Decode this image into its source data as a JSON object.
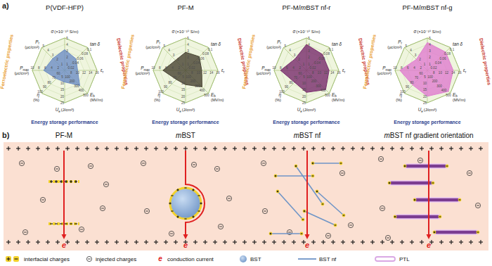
{
  "figure": {
    "label_a": "a)"
  },
  "chart_data": [
    {
      "type": "radar",
      "title": "P(VDF-HFP)",
      "color": "#6f8fc4",
      "axes": [
        {
          "label": "σ",
          "unit": "(×10⁻¹⁰ S/m)",
          "lim": [
            0,
            5
          ],
          "ticks": [
            1,
            2,
            3,
            4,
            5
          ]
        },
        {
          "label": "tan δ",
          "lim": [
            0,
            0.1
          ],
          "ticks": [
            0.02,
            0.04,
            0.06,
            0.08,
            0.1
          ]
        },
        {
          "label": "ε",
          "sub": "r",
          "lim": [
            6,
            16
          ],
          "ticks": [
            8,
            10,
            12,
            14,
            16
          ]
        },
        {
          "label": "E",
          "sub": "b",
          "unit": "(MV/m)",
          "lim": [
            0,
            500
          ],
          "ticks": [
            100,
            200,
            300,
            400,
            500
          ]
        },
        {
          "label": "U",
          "sub": "e",
          "unit": "(J/cm³)",
          "lim": [
            0,
            25
          ],
          "ticks": [
            5,
            10,
            15,
            20,
            25
          ]
        },
        {
          "label": "η",
          "unit": "(%)",
          "lim": [
            50,
            100
          ],
          "ticks": [
            60,
            70,
            80,
            90,
            100
          ]
        },
        {
          "label": "P",
          "sub": "max",
          "unit": "(μc/cm²)",
          "lim": [
            0,
            10
          ],
          "ticks": [
            2,
            4,
            6,
            8,
            10
          ]
        },
        {
          "label": "P",
          "sub": "r",
          "unit": "(μc/cm²)",
          "lim": [
            0,
            5
          ],
          "ticks": [
            1,
            2,
            3,
            4,
            5
          ]
        }
      ],
      "values": [
        3.2,
        0.05,
        10,
        330,
        9,
        68,
        6.5,
        2.6
      ],
      "groups": [
        {
          "label": "Ferroelectric properties",
          "color": "#e9a23b"
        },
        {
          "label": "Dielectric properties",
          "color": "#c8372d"
        },
        {
          "label": "Energy storage performance",
          "color": "#2e3f8f"
        }
      ]
    },
    {
      "type": "radar",
      "title": "PF-M",
      "color": "#4a4535",
      "axes": [
        {
          "label": "σ",
          "unit": "(×10⁻¹⁰ S/m)",
          "lim": [
            0,
            5
          ],
          "ticks": [
            1,
            2,
            3,
            4,
            5
          ]
        },
        {
          "label": "tan δ",
          "lim": [
            0,
            0.1
          ],
          "ticks": [
            0.02,
            0.04,
            0.06,
            0.08,
            0.1
          ]
        },
        {
          "label": "ε",
          "sub": "r",
          "lim": [
            6,
            16
          ],
          "ticks": [
            8,
            10,
            12,
            14,
            16
          ]
        },
        {
          "label": "E",
          "sub": "b",
          "unit": "(MV/m)",
          "lim": [
            0,
            500
          ],
          "ticks": [
            100,
            200,
            300,
            400,
            500
          ]
        },
        {
          "label": "U",
          "sub": "e",
          "unit": "(J/cm³)",
          "lim": [
            0,
            25
          ],
          "ticks": [
            5,
            10,
            15,
            20,
            25
          ]
        },
        {
          "label": "η",
          "unit": "(%)",
          "lim": [
            50,
            100
          ],
          "ticks": [
            60,
            70,
            80,
            90,
            100
          ]
        },
        {
          "label": "P",
          "sub": "max",
          "unit": "(μc/cm²)",
          "lim": [
            0,
            10
          ],
          "ticks": [
            2,
            4,
            6,
            8,
            10
          ]
        },
        {
          "label": "P",
          "sub": "r",
          "unit": "(μc/cm²)",
          "lim": [
            0,
            5
          ],
          "ticks": [
            1,
            2,
            3,
            4,
            5
          ]
        }
      ],
      "values": [
        2.8,
        0.06,
        11,
        360,
        11,
        70,
        7,
        2.2
      ],
      "groups": [
        {
          "label": "Ferroelectric properties",
          "color": "#e9a23b"
        },
        {
          "label": "Dielectric properties",
          "color": "#c8372d"
        },
        {
          "label": "Energy storage performance",
          "color": "#2e3f8f"
        }
      ]
    },
    {
      "type": "radar",
      "title": "PF-M/mBST nf-r",
      "color": "#7a2f6e",
      "axes": [
        {
          "label": "σ",
          "unit": "(×10⁻¹⁰ S/m)",
          "lim": [
            0,
            5
          ],
          "ticks": [
            1,
            2,
            3,
            4,
            5
          ]
        },
        {
          "label": "tan δ",
          "lim": [
            0,
            0.1
          ],
          "ticks": [
            0.02,
            0.04,
            0.06,
            0.08,
            0.1
          ]
        },
        {
          "label": "ε",
          "sub": "r",
          "lim": [
            6,
            16
          ],
          "ticks": [
            8,
            10,
            12,
            14,
            16
          ]
        },
        {
          "label": "E",
          "sub": "b",
          "unit": "(MV/m)",
          "lim": [
            0,
            500
          ],
          "ticks": [
            100,
            200,
            300,
            400,
            500
          ]
        },
        {
          "label": "U",
          "sub": "e",
          "unit": "(J/cm³)",
          "lim": [
            0,
            25
          ],
          "ticks": [
            5,
            10,
            15,
            20,
            25
          ]
        },
        {
          "label": "η",
          "unit": "(%)",
          "lim": [
            50,
            100
          ],
          "ticks": [
            60,
            70,
            80,
            90,
            100
          ]
        },
        {
          "label": "P",
          "sub": "max",
          "unit": "(μc/cm²)",
          "lim": [
            0,
            10
          ],
          "ticks": [
            2,
            4,
            6,
            8,
            10
          ]
        },
        {
          "label": "P",
          "sub": "r",
          "unit": "(μc/cm²)",
          "lim": [
            0,
            5
          ],
          "ticks": [
            1,
            2,
            3,
            4,
            5
          ]
        }
      ],
      "values": [
        4,
        0.07,
        13,
        420,
        17,
        76,
        8,
        2.5
      ],
      "groups": [
        {
          "label": "Ferroelectric properties",
          "color": "#e9a23b"
        },
        {
          "label": "Dielectric properties",
          "color": "#c8372d"
        },
        {
          "label": "Energy storage performance",
          "color": "#2e3f8f"
        }
      ]
    },
    {
      "type": "radar",
      "title": "PF-M/mBST nf-g",
      "color": "#e07fd0",
      "axes": [
        {
          "label": "σ",
          "unit": "(×10⁻¹⁰ S/m)",
          "lim": [
            0,
            5
          ],
          "ticks": [
            1,
            2,
            3,
            4,
            5
          ]
        },
        {
          "label": "tan δ",
          "lim": [
            0,
            0.1
          ],
          "ticks": [
            0.02,
            0.04,
            0.06,
            0.08,
            0.1
          ]
        },
        {
          "label": "ε",
          "sub": "r",
          "lim": [
            6,
            16
          ],
          "ticks": [
            8,
            10,
            12,
            14,
            16
          ]
        },
        {
          "label": "E",
          "sub": "b",
          "unit": "(MV/m)",
          "lim": [
            0,
            500
          ],
          "ticks": [
            100,
            200,
            300,
            400,
            500
          ]
        },
        {
          "label": "U",
          "sub": "e",
          "unit": "(J/cm³)",
          "lim": [
            0,
            25
          ],
          "ticks": [
            5,
            10,
            15,
            20,
            25
          ]
        },
        {
          "label": "η",
          "unit": "(%)",
          "lim": [
            50,
            100
          ],
          "ticks": [
            60,
            70,
            80,
            90,
            100
          ]
        },
        {
          "label": "P",
          "sub": "max",
          "unit": "(μc/cm²)",
          "lim": [
            0,
            10
          ],
          "ticks": [
            2,
            4,
            6,
            8,
            10
          ]
        },
        {
          "label": "P",
          "sub": "r",
          "unit": "(μc/cm²)",
          "lim": [
            0,
            5
          ],
          "ticks": [
            1,
            2,
            3,
            4,
            5
          ]
        }
      ],
      "values": [
        4.3,
        0.08,
        14,
        460,
        20,
        82,
        8.5,
        2.4
      ],
      "groups": [
        {
          "label": "Ferroelectric properties",
          "color": "#e9a23b"
        },
        {
          "label": "Dielectric properties",
          "color": "#c8372d"
        },
        {
          "label": "Energy storage performance",
          "color": "#2e3f8f"
        }
      ]
    }
  ],
  "diagram": {
    "label": "b)",
    "panels": [
      "PF-M",
      "mBST",
      "mBST nf",
      "mBST nf gradient orientation"
    ],
    "current_symbol": "e",
    "legend": [
      {
        "label": "interfacial charges"
      },
      {
        "label": "injected charges"
      },
      {
        "label": "conduction current"
      },
      {
        "label": "BST"
      },
      {
        "label": "BST nf"
      },
      {
        "label": "PTL"
      }
    ]
  }
}
